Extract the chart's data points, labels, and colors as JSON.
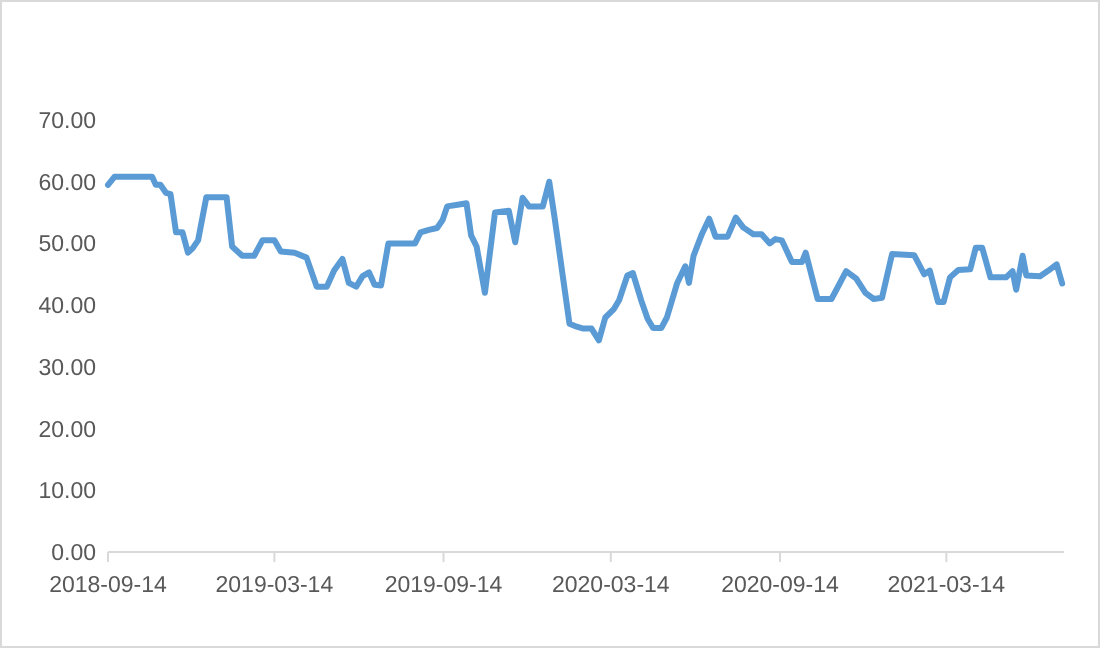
{
  "chart_data": {
    "type": "line",
    "color": "#5b9bd5",
    "x": [
      "2018-09-14",
      "2018-09-21",
      "2018-11-01",
      "2018-11-05",
      "2018-11-10",
      "2018-11-16",
      "2018-11-21",
      "2018-11-27",
      "2018-12-04",
      "2018-12-10",
      "2018-12-15",
      "2018-12-21",
      "2018-12-30",
      "2019-01-21",
      "2019-01-27",
      "2019-02-07",
      "2019-02-20",
      "2019-03-01",
      "2019-03-14",
      "2019-03-21",
      "2019-04-05",
      "2019-04-18",
      "2019-04-29",
      "2019-05-10",
      "2019-05-18",
      "2019-05-27",
      "2019-06-03",
      "2019-06-11",
      "2019-06-18",
      "2019-06-25",
      "2019-07-01",
      "2019-07-08",
      "2019-07-16",
      "2019-08-14",
      "2019-08-20",
      "2019-08-29",
      "2019-09-07",
      "2019-09-13",
      "2019-09-18",
      "2019-10-01",
      "2019-10-09",
      "2019-10-14",
      "2019-10-20",
      "2019-10-29",
      "2019-11-09",
      "2019-11-24",
      "2019-12-01",
      "2019-12-09",
      "2019-12-16",
      "2019-12-31",
      "2020-01-07",
      "2020-01-13",
      "2020-01-29",
      "2020-02-06",
      "2020-02-13",
      "2020-02-22",
      "2020-03-01",
      "2020-03-08",
      "2020-03-17",
      "2020-03-23",
      "2020-04-01",
      "2020-04-07",
      "2020-04-16",
      "2020-04-23",
      "2020-04-29",
      "2020-05-08",
      "2020-05-14",
      "2020-05-25",
      "2020-06-03",
      "2020-06-07",
      "2020-06-12",
      "2020-06-21",
      "2020-06-29",
      "2020-07-06",
      "2020-07-19",
      "2020-07-28",
      "2020-08-05",
      "2020-08-16",
      "2020-08-25",
      "2020-09-03",
      "2020-09-09",
      "2020-09-16",
      "2020-09-27",
      "2020-10-08",
      "2020-10-12",
      "2020-10-25",
      "2020-11-09",
      "2020-11-18",
      "2020-11-25",
      "2020-12-06",
      "2020-12-16",
      "2020-12-25",
      "2021-01-03",
      "2021-01-14",
      "2021-02-07",
      "2021-02-18",
      "2021-02-24",
      "2021-03-05",
      "2021-03-11",
      "2021-03-18",
      "2021-03-27",
      "2021-04-09",
      "2021-04-15",
      "2021-04-22",
      "2021-05-01",
      "2021-05-18",
      "2021-05-25",
      "2021-05-29",
      "2021-06-05",
      "2021-06-09",
      "2021-06-24",
      "2021-07-03",
      "2021-07-12",
      "2021-07-18"
    ],
    "values": [
      59.5,
      60.8,
      60.8,
      59.5,
      59.5,
      58.2,
      58,
      51.8,
      51.8,
      48.5,
      49.2,
      50.5,
      57.5,
      57.5,
      49.5,
      48,
      48,
      50.5,
      50.5,
      48.7,
      48.5,
      47.7,
      43,
      43,
      45.6,
      47.5,
      43.6,
      43,
      44.7,
      45.3,
      43.3,
      43.2,
      50,
      50,
      51.8,
      52.2,
      52.5,
      53.8,
      56,
      56.3,
      56.5,
      51.3,
      49.5,
      42,
      55,
      55.3,
      50.2,
      57.4,
      56,
      56,
      60,
      54,
      37,
      36.5,
      36.2,
      36.2,
      34.3,
      38,
      39.3,
      40.8,
      44.8,
      45.2,
      40.8,
      37.8,
      36.3,
      36.3,
      38,
      43.5,
      46.3,
      43.6,
      48,
      51.5,
      54,
      51.1,
      51.1,
      54.2,
      52.6,
      51.5,
      51.5,
      50,
      50.7,
      50.5,
      47,
      47,
      48.5,
      41,
      41,
      43.5,
      45.5,
      44.3,
      42,
      41,
      41.2,
      48.3,
      48.1,
      45,
      45.6,
      40.5,
      40.5,
      44.5,
      45.7,
      45.8,
      49.3,
      49.3,
      44.5,
      44.5,
      45.5,
      42.5,
      48,
      44.8,
      44.7,
      45.6,
      46.6,
      43.5
    ],
    "xlim": [
      "2018-09-14",
      "2021-07-20"
    ],
    "xticks": [
      {
        "value": "2018-09-14",
        "label": "2018-09-14"
      },
      {
        "value": "2019-03-14",
        "label": "2019-03-14"
      },
      {
        "value": "2019-09-14",
        "label": "2019-09-14"
      },
      {
        "value": "2020-03-14",
        "label": "2020-03-14"
      },
      {
        "value": "2020-09-14",
        "label": "2020-09-14"
      },
      {
        "value": "2021-03-14",
        "label": "2021-03-14"
      }
    ],
    "ylim": [
      0,
      70
    ],
    "yticks": [
      {
        "value": 0,
        "label": "0.00"
      },
      {
        "value": 10,
        "label": "10.00"
      },
      {
        "value": 20,
        "label": "20.00"
      },
      {
        "value": 30,
        "label": "30.00"
      },
      {
        "value": 40,
        "label": "40.00"
      },
      {
        "value": 50,
        "label": "50.00"
      },
      {
        "value": 60,
        "label": "60.00"
      },
      {
        "value": 70,
        "label": "70.00"
      }
    ],
    "marker": "none",
    "line_style": "solid"
  }
}
